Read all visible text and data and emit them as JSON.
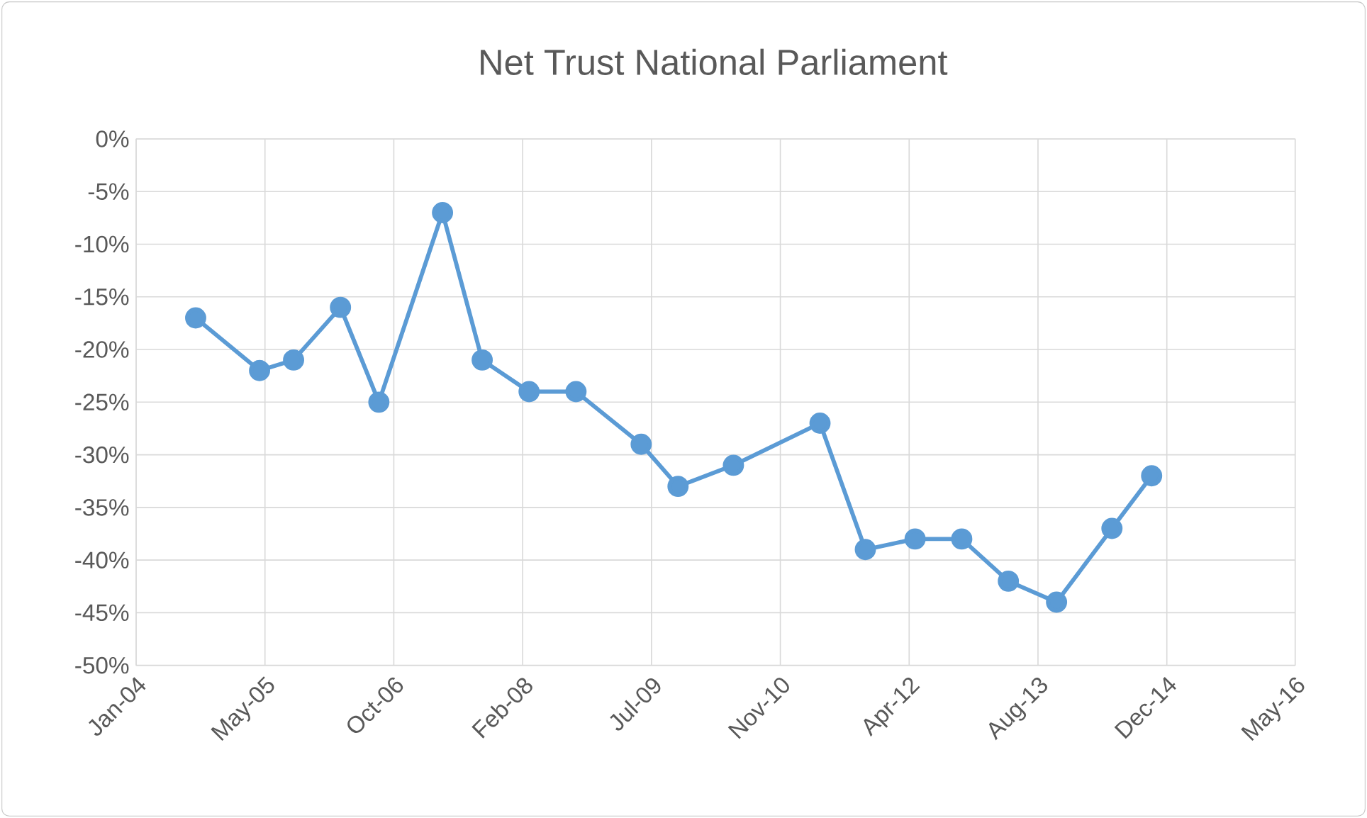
{
  "chart_data": {
    "type": "line",
    "title": "Net Trust National Parliament",
    "x": [
      "2004-09-02",
      "2005-05-08",
      "2005-09-17",
      "2006-03-18",
      "2006-08-14",
      "2007-04-18",
      "2007-09-19",
      "2008-03-19",
      "2008-09-17",
      "2009-05-28",
      "2009-10-18",
      "2010-05-21",
      "2011-04-22",
      "2011-10-15",
      "2012-04-25",
      "2012-10-23",
      "2013-04-22",
      "2013-10-26",
      "2014-05-29",
      "2014-10-30"
    ],
    "series": [
      {
        "color": "#5b9bd5",
        "values": [
          -17,
          -22,
          -21,
          -16,
          -25,
          -7,
          -21,
          -24,
          -24,
          -29,
          -33,
          -31,
          -27,
          -39,
          -38,
          -38,
          -42,
          -44,
          -37,
          -32
        ]
      }
    ],
    "xlim": [
      "2004-01-15",
      "2016-05-09"
    ],
    "xticks": [
      {
        "value": "2004-01-15",
        "label": "Jan-04"
      },
      {
        "value": "2005-05-29",
        "label": "May-05"
      },
      {
        "value": "2006-10-11",
        "label": "Oct-06"
      },
      {
        "value": "2008-02-23",
        "label": "Feb-08"
      },
      {
        "value": "2009-07-07",
        "label": "Jul-09"
      },
      {
        "value": "2010-11-19",
        "label": "Nov-10"
      },
      {
        "value": "2012-04-02",
        "label": "Apr-12"
      },
      {
        "value": "2013-08-15",
        "label": "Aug-13"
      },
      {
        "value": "2014-12-28",
        "label": "Dec-14"
      },
      {
        "value": "2016-05-09",
        "label": "May-16"
      }
    ],
    "ylim": [
      -50,
      0
    ],
    "yticks": [
      {
        "value": -50,
        "label": "-50%"
      },
      {
        "value": -45,
        "label": "-45%"
      },
      {
        "value": -40,
        "label": "-40%"
      },
      {
        "value": -35,
        "label": "-35%"
      },
      {
        "value": -30,
        "label": "-30%"
      },
      {
        "value": -25,
        "label": "-25%"
      },
      {
        "value": -20,
        "label": "-20%"
      },
      {
        "value": -15,
        "label": "-15%"
      },
      {
        "value": -10,
        "label": "-10%"
      },
      {
        "value": -5,
        "label": "-5%"
      },
      {
        "value": 0,
        "label": "0%"
      }
    ],
    "grid": true,
    "marker": "circle",
    "line_style": "solid"
  }
}
